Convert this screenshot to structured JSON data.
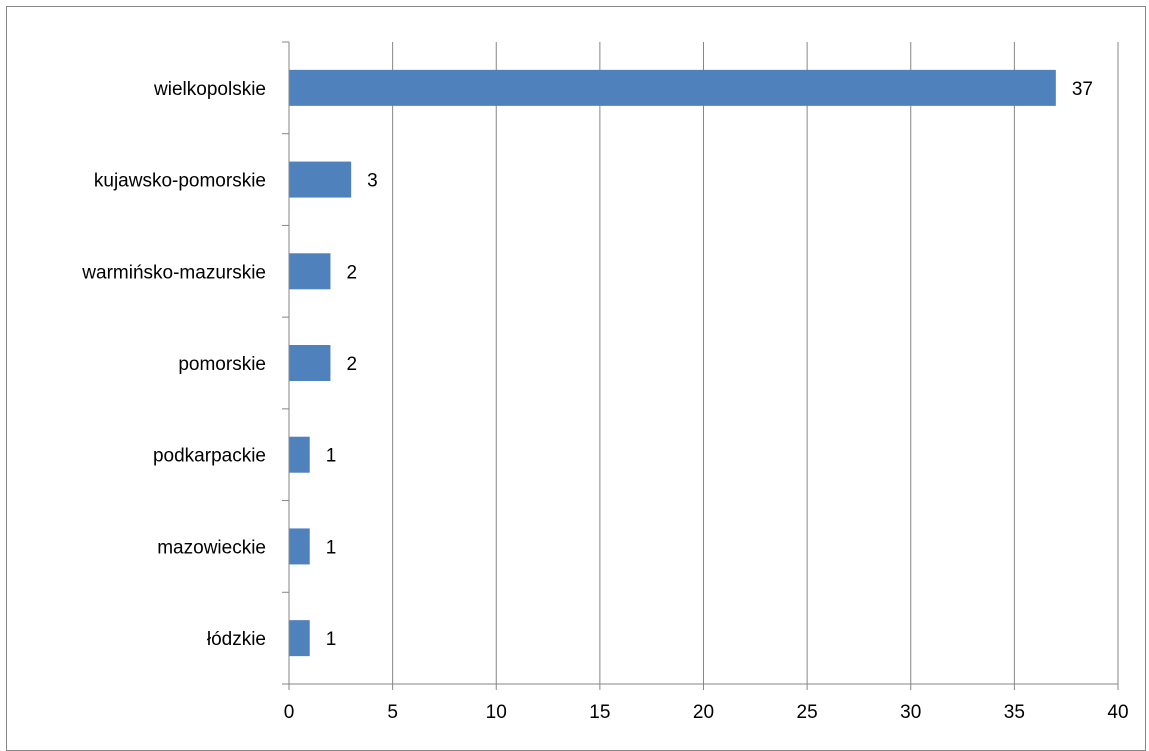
{
  "chart_data": {
    "type": "bar",
    "orientation": "horizontal",
    "categories": [
      "wielkopolskie",
      "kujawsko-pomorskie",
      "warmińsko-mazurskie",
      "pomorskie",
      "podkarpackie",
      "mazowieckie",
      "łódzkie"
    ],
    "values": [
      37,
      3,
      2,
      2,
      1,
      1,
      1
    ],
    "data_labels": [
      "37",
      "3",
      "2",
      "2",
      "1",
      "1",
      "1"
    ],
    "x_ticks": [
      "0",
      "5",
      "10",
      "15",
      "20",
      "25",
      "30",
      "35",
      "40"
    ],
    "xlim": [
      0,
      40
    ],
    "grid": "vertical major gridlines",
    "legend": "none",
    "title": "",
    "xlabel": "",
    "ylabel": "",
    "colors": {
      "bar": "#4F81BD",
      "grid": "#868686",
      "axis": "#868686",
      "border": "#868686"
    }
  }
}
